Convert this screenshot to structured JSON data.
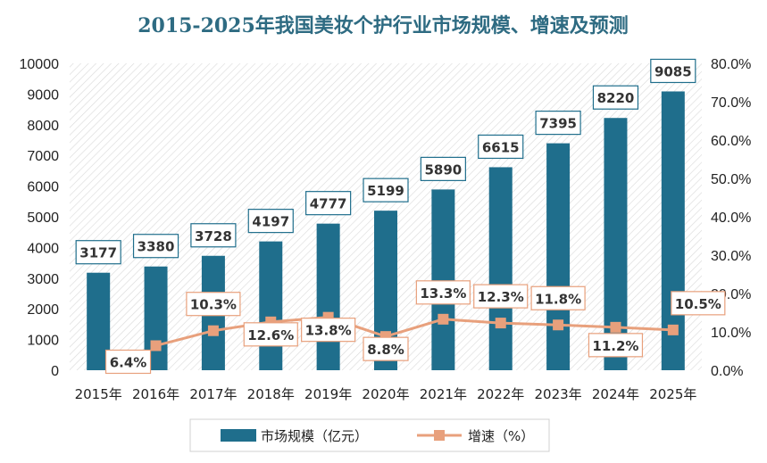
{
  "chart_data": {
    "type": "bar",
    "title": "2015-2025年我国美妆个护行业市场规模、增速及预测",
    "categories": [
      "2015年",
      "2016年",
      "2017年",
      "2018年",
      "2019年",
      "2020年",
      "2021年",
      "2022年",
      "2023年",
      "2024年",
      "2025年"
    ],
    "y_left_ticks": [
      "0",
      "1000",
      "2000",
      "3000",
      "4000",
      "5000",
      "6000",
      "7000",
      "8000",
      "9000",
      "10000"
    ],
    "y_right_ticks": [
      "0.0%",
      "10.0%",
      "20.0%",
      "30.0%",
      "40.0%",
      "50.0%",
      "60.0%",
      "70.0%",
      "80.0%"
    ],
    "ylim_left": [
      0,
      10000
    ],
    "ylim_right": [
      0,
      80
    ],
    "series": [
      {
        "name": "市场规模（亿元）",
        "type": "bar",
        "axis": "left",
        "color": "#1f6e8c",
        "values": [
          3177,
          3380,
          3728,
          4197,
          4777,
          5199,
          5890,
          6615,
          7395,
          8220,
          9085
        ],
        "labels": [
          "3177",
          "3380",
          "3728",
          "4197",
          "4777",
          "5199",
          "5890",
          "6615",
          "7395",
          "8220",
          "9085"
        ]
      },
      {
        "name": "增速（%）",
        "type": "line",
        "axis": "right",
        "color": "#e8a07c",
        "values": [
          null,
          6.4,
          10.3,
          12.6,
          13.8,
          8.8,
          13.3,
          12.3,
          11.8,
          11.2,
          10.5
        ],
        "labels": [
          "",
          "6.4%",
          "10.3%",
          "12.6%",
          "13.8%",
          "8.8%",
          "13.3%",
          "12.3%",
          "11.8%",
          "11.2%",
          "10.5%"
        ]
      }
    ],
    "grid": false,
    "legend_position": "bottom"
  }
}
